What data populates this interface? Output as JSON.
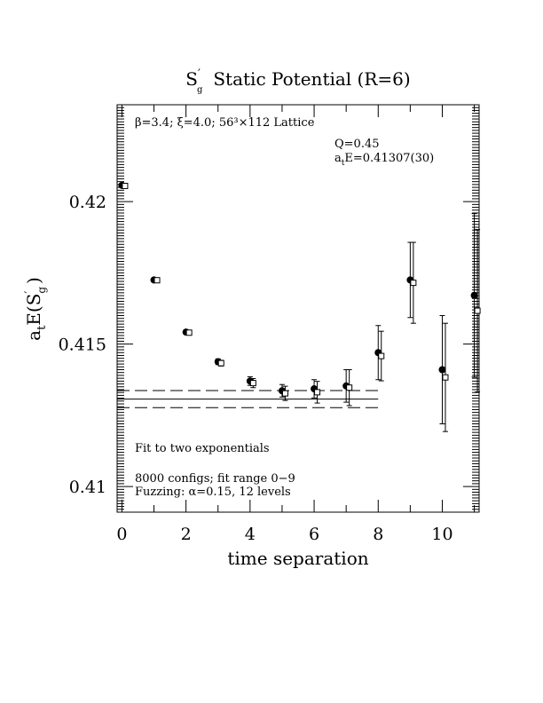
{
  "chart_data": {
    "type": "scatter",
    "title": "S'g  Static Potential (R=6)",
    "title_parts": {
      "main": "S",
      "prime": "′",
      "sub": "g",
      "rest": "Static Potential (R=6)"
    },
    "xlabel": "time separation",
    "ylabel": "atE(S'g)",
    "ylabel_parts": {
      "a": "a",
      "t": "t",
      "rest": "E(S",
      "prime": "′",
      "sub": "g",
      "close": ")"
    },
    "xlim": [
      -0.15,
      11.15
    ],
    "ylim": [
      0.4091,
      0.4234
    ],
    "x_ticks": [
      0,
      2,
      4,
      6,
      8,
      10
    ],
    "x_tick_labels": [
      "0",
      "2",
      "4",
      "6",
      "8",
      "10"
    ],
    "y_ticks": [
      0.41,
      0.415,
      0.42
    ],
    "y_tick_labels": [
      "0.41",
      "0.415",
      "0.42"
    ],
    "grid": false,
    "annotations": {
      "lattice": "β=3.4; ξ=4.0; 56³×112 Lattice",
      "q": "Q=0.45",
      "energy": {
        "a": "a",
        "t": "t",
        "rest": "E=0.41307(30)"
      },
      "fit": "Fit to two exponentials",
      "configs": "8000 configs; fit range 0−9",
      "fuzzing": "Fuzzing: α=0.15, 12 levels"
    },
    "fit": {
      "value": 0.41307,
      "error": 0.0003,
      "x_start": -0.15,
      "x_end": 8.0
    },
    "series": [
      {
        "marker": "filled-circle",
        "points": [
          {
            "x": 0,
            "y": 0.42057,
            "err": 4e-05
          },
          {
            "x": 1,
            "y": 0.41725,
            "err": 6e-05
          },
          {
            "x": 2,
            "y": 0.41542,
            "err": 7e-05
          },
          {
            "x": 3,
            "y": 0.41438,
            "err": 0.0001
          },
          {
            "x": 4,
            "y": 0.4137,
            "err": 0.00015
          },
          {
            "x": 5,
            "y": 0.41336,
            "err": 0.00022
          },
          {
            "x": 6,
            "y": 0.41343,
            "err": 0.00032
          },
          {
            "x": 7,
            "y": 0.41353,
            "err": 0.00057
          },
          {
            "x": 8,
            "y": 0.4147,
            "err": 0.00095
          },
          {
            "x": 9,
            "y": 0.41725,
            "err": 0.00132
          },
          {
            "x": 10,
            "y": 0.4141,
            "err": 0.0019
          },
          {
            "x": 11,
            "y": 0.41671,
            "err": 0.00287
          }
        ]
      },
      {
        "marker": "open-square",
        "points": [
          {
            "x": 0,
            "y": 0.42055,
            "err": 4e-05
          },
          {
            "x": 1,
            "y": 0.41724,
            "err": 6e-05
          },
          {
            "x": 2,
            "y": 0.4154,
            "err": 7e-05
          },
          {
            "x": 3,
            "y": 0.41433,
            "err": 0.0001
          },
          {
            "x": 4,
            "y": 0.41363,
            "err": 0.00016
          },
          {
            "x": 5,
            "y": 0.41327,
            "err": 0.00025
          },
          {
            "x": 6,
            "y": 0.41331,
            "err": 0.00038
          },
          {
            "x": 7,
            "y": 0.41347,
            "err": 0.00063
          },
          {
            "x": 8,
            "y": 0.41458,
            "err": 0.00087
          },
          {
            "x": 9,
            "y": 0.41715,
            "err": 0.00142
          },
          {
            "x": 10,
            "y": 0.41383,
            "err": 0.0019
          },
          {
            "x": 11,
            "y": 0.41617,
            "err": 0.00285
          }
        ]
      }
    ]
  }
}
